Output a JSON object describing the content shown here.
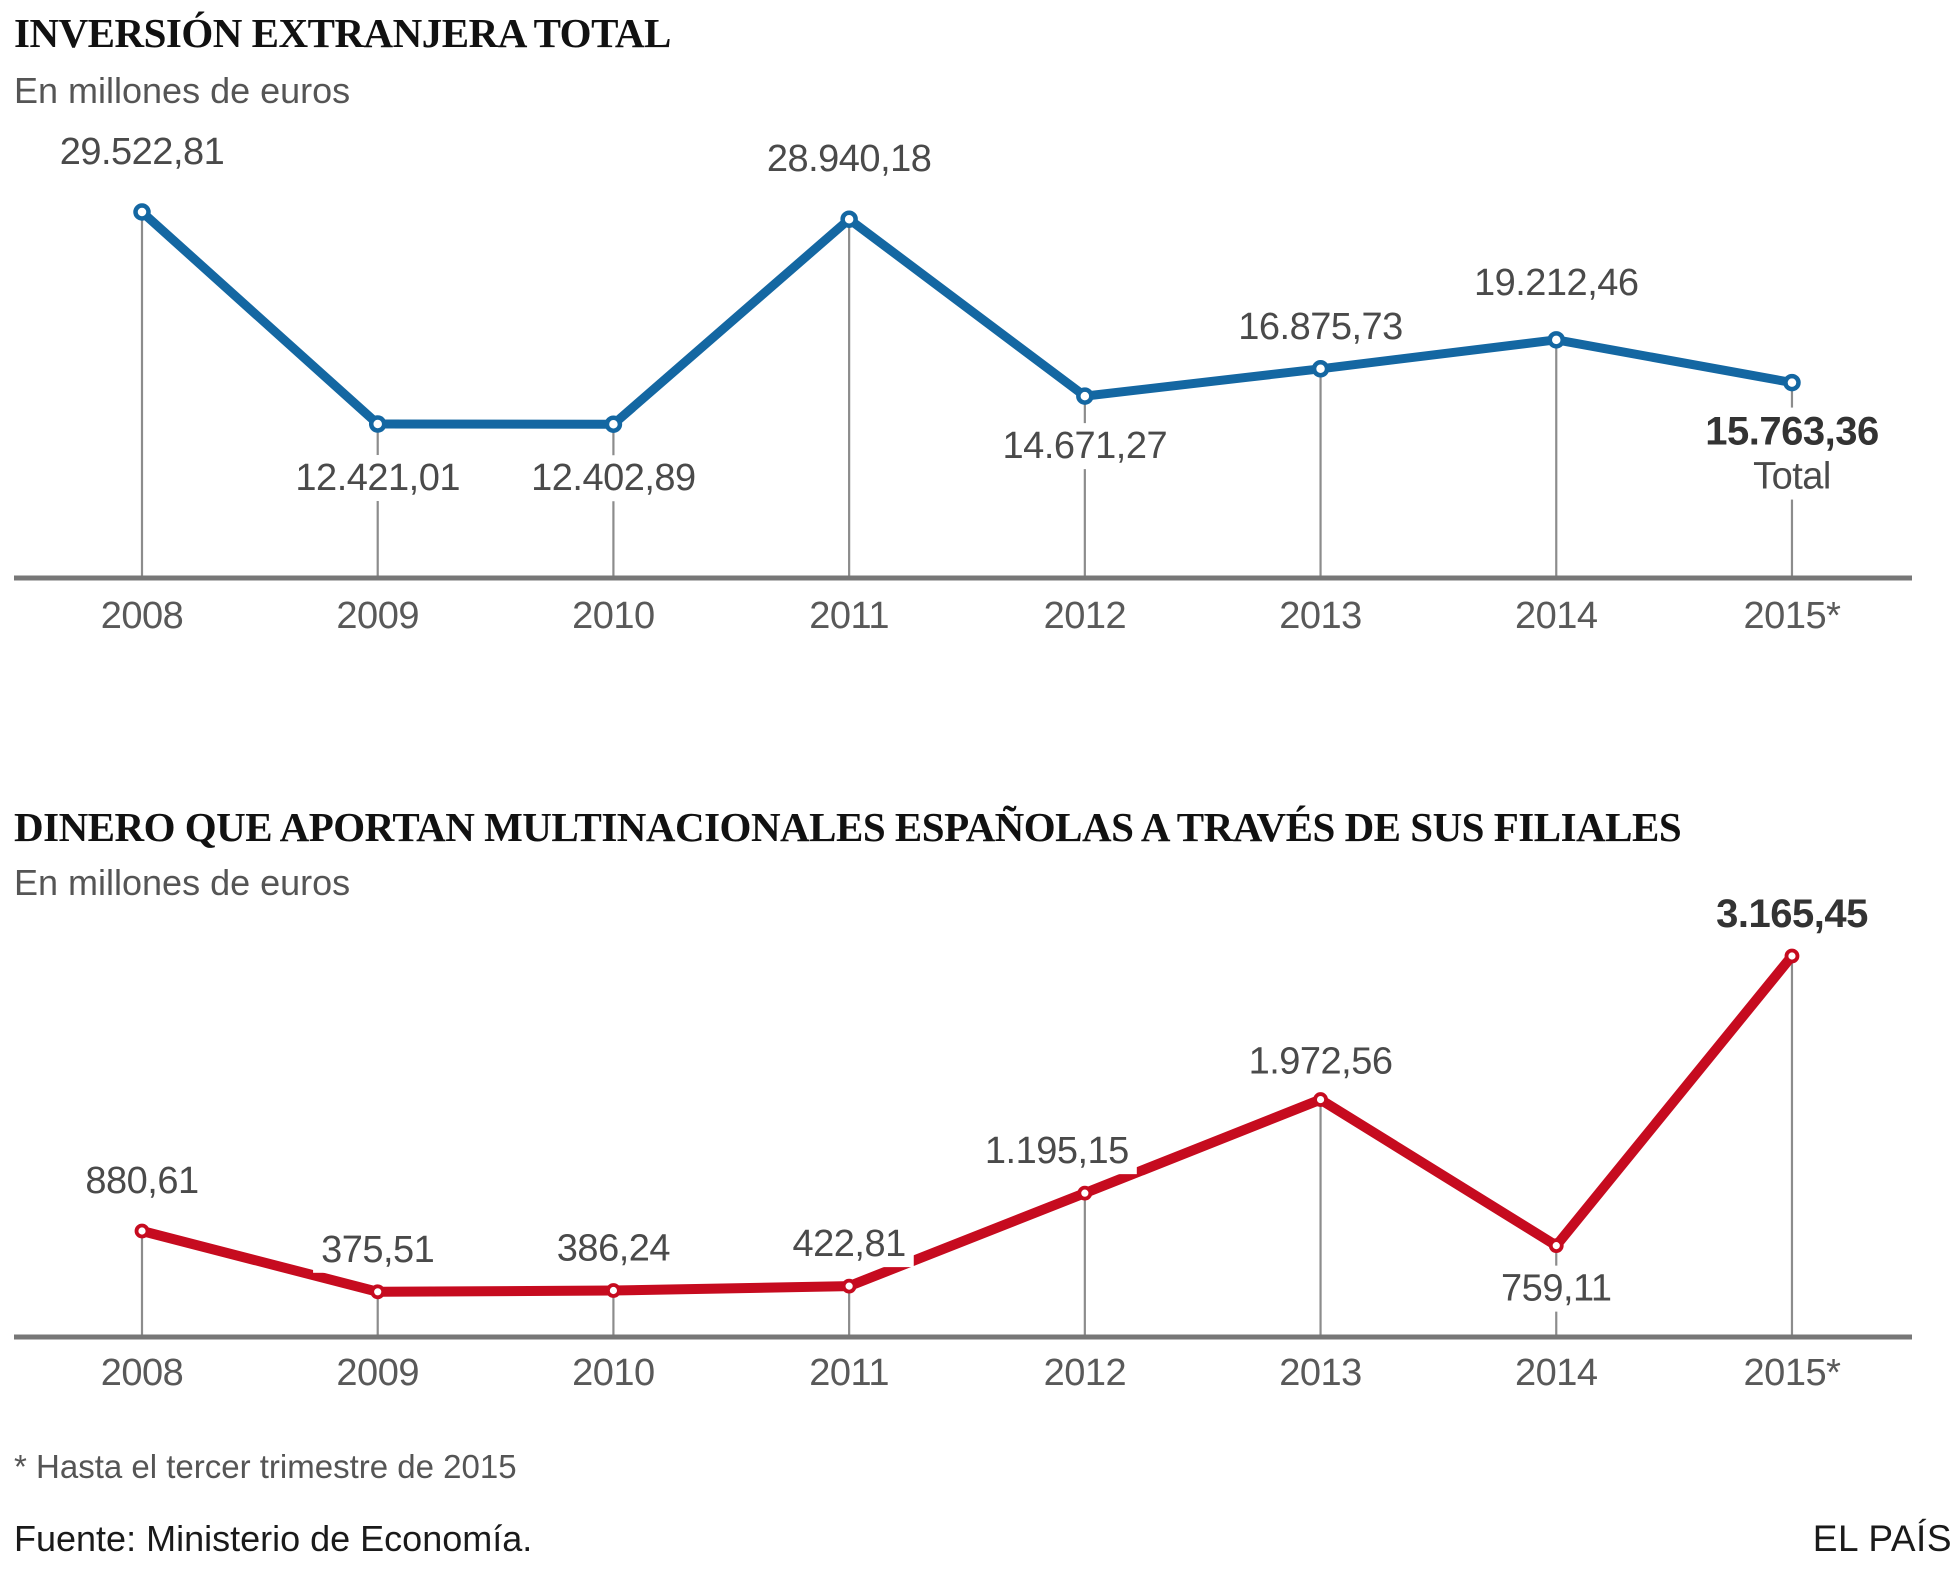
{
  "page": {
    "background": "#ffffff"
  },
  "chart_data": [
    {
      "type": "line",
      "title": "INVERSIÓN EXTRANJERA TOTAL",
      "subtitle": "En millones de euros",
      "color": "#1467a2",
      "categories": [
        "2008",
        "2009",
        "2010",
        "2011",
        "2012",
        "2013",
        "2014",
        "2015*"
      ],
      "values": [
        29522.81,
        12421.01,
        12402.89,
        28940.18,
        14671.27,
        16875.73,
        19212.46,
        15763.36
      ],
      "value_labels": [
        "29.522,81",
        "12.421,01",
        "12.402,89",
        "28.940,18",
        "14.671,27",
        "16.875,73",
        "19.212,46",
        "15.763,36"
      ],
      "last_value_sublabel": "Total",
      "ylim": [
        0,
        29522.81
      ],
      "grid": false,
      "legend": "none",
      "markers": "open-circle",
      "droplines": true
    },
    {
      "type": "line",
      "title": "DINERO QUE APORTAN MULTINACIONALES ESPAÑOLAS A TRAVÉS DE SUS FILIALES",
      "subtitle": "En millones de euros",
      "color": "#c60b1f",
      "categories": [
        "2008",
        "2009",
        "2010",
        "2011",
        "2012",
        "2013",
        "2014",
        "2015*"
      ],
      "values": [
        880.61,
        375.51,
        386.24,
        422.81,
        1195.15,
        1972.56,
        759.11,
        3165.45
      ],
      "value_labels": [
        "880,61",
        "375,51",
        "386,24",
        "422,81",
        "1.195,15",
        "1.972,56",
        "759,11",
        "3.165,45"
      ],
      "last_value_sublabel": "",
      "ylim": [
        0,
        3165.45
      ],
      "grid": false,
      "legend": "none",
      "markers": "open-circle",
      "droplines": true
    }
  ],
  "footer": {
    "footnote": "* Hasta el tercer trimestre de 2015",
    "source": "Fuente: Ministerio de Economía.",
    "credit": "EL PAÍS"
  },
  "style_colors": {
    "axis": "#777777",
    "dropline": "#8c8c8c",
    "value_label": "#4a4a4a",
    "value_label_bold": "#333333",
    "tick_label": "#595959"
  }
}
